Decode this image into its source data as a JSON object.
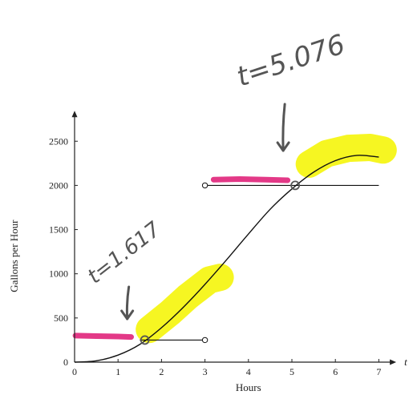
{
  "chart_data": {
    "type": "line",
    "xlabel": "Hours",
    "ylabel": "Gallons per Hour",
    "x_axis_end_label": "t",
    "xlim": [
      0,
      7.4
    ],
    "ylim": [
      0,
      2700
    ],
    "xticks": [
      "0",
      "1",
      "2",
      "3",
      "4",
      "5",
      "6",
      "7"
    ],
    "yticks": [
      "0",
      "500",
      "1000",
      "1500",
      "2000",
      "2500"
    ],
    "series": [
      {
        "kind": "curve",
        "x": [
          0,
          0.5,
          1,
          1.5,
          2,
          2.5,
          3,
          3.5,
          4,
          4.5,
          5,
          5.5,
          6,
          6.5,
          7
        ],
        "y": [
          0,
          15,
          80,
          200,
          390,
          620,
          880,
          1160,
          1450,
          1730,
          1960,
          2150,
          2280,
          2340,
          2320
        ]
      },
      {
        "kind": "segment",
        "x": [
          1.5,
          3
        ],
        "y": [
          250,
          250
        ],
        "open_end": true
      },
      {
        "kind": "segment",
        "x": [
          3,
          7
        ],
        "y": [
          2000,
          2000
        ],
        "open_start": true
      }
    ],
    "annotations": [
      {
        "text": "t=1.617",
        "x": 1.617,
        "y": 250
      },
      {
        "text": "t=5.076",
        "x": 5.076,
        "y": 2000
      }
    ],
    "grid": false
  },
  "colors": {
    "axis": "#222222",
    "curve": "#111111",
    "highlight_yellow": "#f5f50a",
    "highlight_pink": "#e0247a",
    "pen": "#555555"
  }
}
